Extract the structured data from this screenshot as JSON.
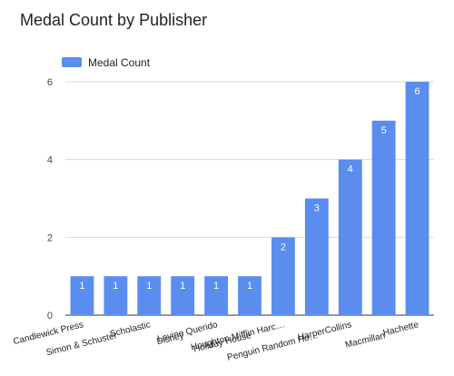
{
  "chart_data": {
    "type": "bar",
    "title": "Medal Count by Publisher",
    "xlabel": "",
    "ylabel": "",
    "categories": [
      "Candlewick Press",
      "Simon & Schuster",
      "Scholastic",
      "Disney",
      "Levine Querido",
      "Holiday House",
      "Houghton Mifflin Harc…",
      "Penguin Random Ho…",
      "HarperCollins",
      "Macmillan",
      "Hachette"
    ],
    "series": [
      {
        "name": "Medal Count",
        "values": [
          1,
          1,
          1,
          1,
          1,
          1,
          2,
          3,
          4,
          5,
          6
        ],
        "color": "#5b8def"
      }
    ],
    "ylim": [
      0,
      6
    ],
    "yticks": [
      0,
      2,
      4,
      6
    ],
    "grid": true,
    "legend": "top-left",
    "data_labels": true
  }
}
